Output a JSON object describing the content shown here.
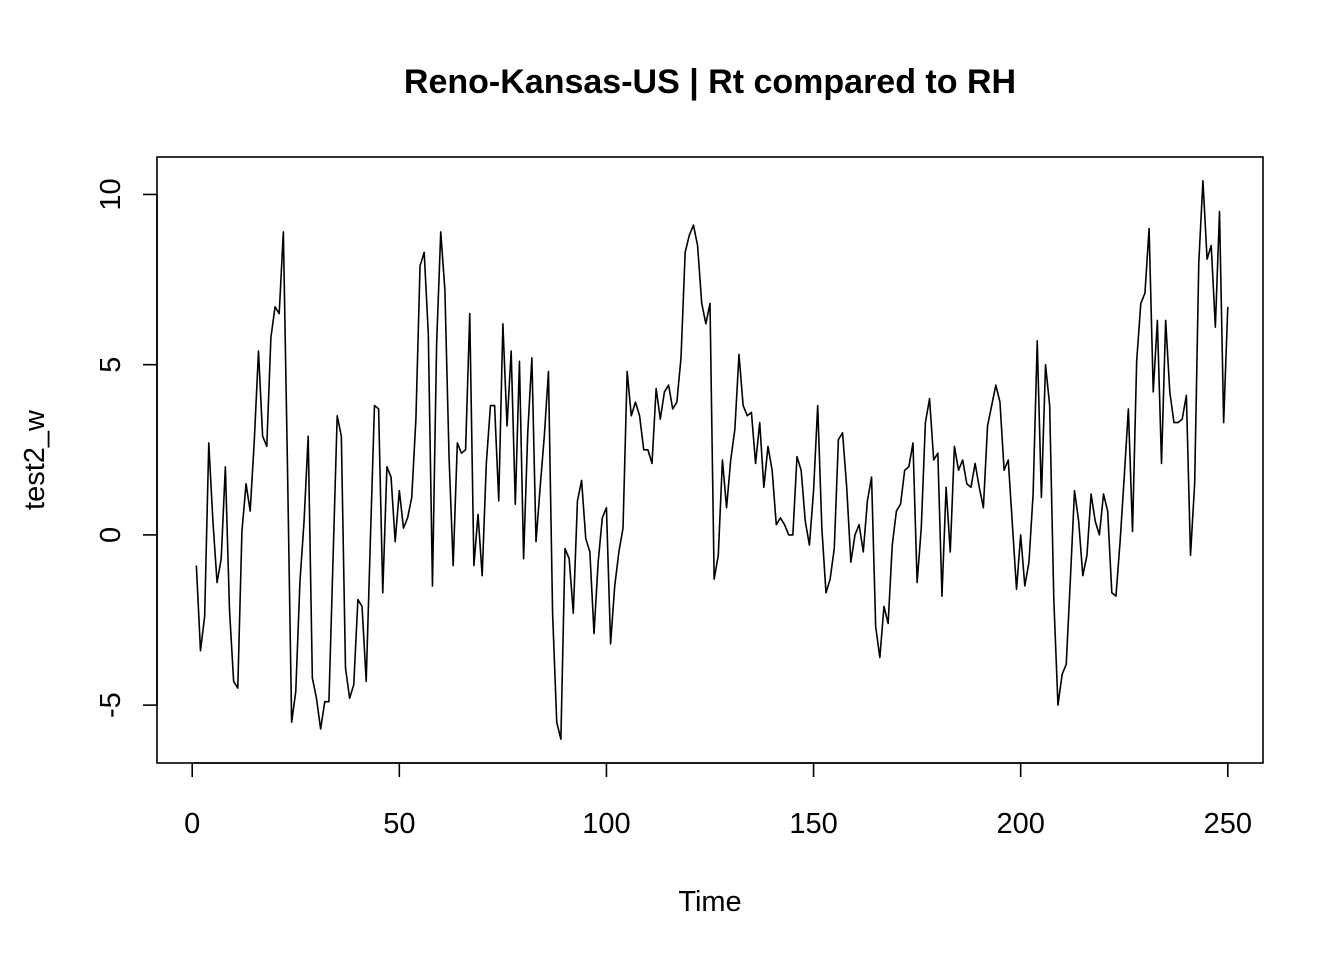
{
  "chart_data": {
    "type": "line",
    "title": "Reno-Kansas-US | Rt compared to RH",
    "xlabel": "Time",
    "ylabel": "test2_w",
    "xlim": [
      -8.5,
      258.5
    ],
    "ylim": [
      -6.7,
      11.1
    ],
    "xticks": [
      0,
      50,
      100,
      150,
      200,
      250
    ],
    "yticks": [
      -5,
      0,
      5,
      10
    ],
    "xtick_labels": [
      "0",
      "50",
      "100",
      "150",
      "200",
      "250"
    ],
    "ytick_labels": [
      "-5",
      "0",
      "5",
      "10"
    ],
    "grid": false,
    "legend": "none",
    "line_color": "#000000",
    "series": [
      {
        "x_start": 1,
        "values": [
          -0.9,
          -3.4,
          -2.4,
          2.7,
          0.4,
          -1.4,
          -0.7,
          2.0,
          -2.2,
          -4.3,
          -4.5,
          0.1,
          1.5,
          0.7,
          2.8,
          5.4,
          2.9,
          2.6,
          5.8,
          6.7,
          6.5,
          8.9,
          2.0,
          -5.5,
          -4.6,
          -1.4,
          0.4,
          2.9,
          -4.2,
          -4.8,
          -5.7,
          -4.9,
          -4.9,
          -0.7,
          3.5,
          2.9,
          -3.9,
          -4.8,
          -4.4,
          -1.9,
          -2.1,
          -4.3,
          -0.2,
          3.8,
          3.7,
          -1.7,
          2.0,
          1.7,
          -0.2,
          1.3,
          0.2,
          0.5,
          1.1,
          3.4,
          7.9,
          8.3,
          5.9,
          -1.5,
          5.6,
          8.9,
          7.2,
          2.3,
          -0.9,
          2.7,
          2.4,
          2.5,
          6.5,
          -0.9,
          0.6,
          -1.2,
          2.1,
          3.8,
          3.8,
          1.0,
          6.2,
          3.2,
          5.4,
          0.9,
          5.1,
          -0.7,
          3.0,
          5.2,
          -0.2,
          1.4,
          2.9,
          4.8,
          -2.3,
          -5.5,
          -6.0,
          -0.4,
          -0.7,
          -2.3,
          1.0,
          1.6,
          -0.1,
          -0.5,
          -2.9,
          -0.8,
          0.5,
          0.8,
          -3.2,
          -1.5,
          -0.5,
          0.2,
          4.8,
          3.5,
          3.9,
          3.5,
          2.5,
          2.5,
          2.1,
          4.3,
          3.4,
          4.2,
          4.4,
          3.7,
          3.9,
          5.2,
          8.3,
          8.8,
          9.1,
          8.5,
          6.8,
          6.2,
          6.8,
          -1.3,
          -0.6,
          2.2,
          0.8,
          2.2,
          3.1,
          5.3,
          3.8,
          3.5,
          3.6,
          2.1,
          3.3,
          1.4,
          2.6,
          1.9,
          0.3,
          0.5,
          0.3,
          0.0,
          0.0,
          2.3,
          1.9,
          0.4,
          -0.3,
          1.3,
          3.8,
          0.2,
          -1.7,
          -1.3,
          -0.4,
          2.8,
          3.0,
          1.4,
          -0.8,
          0.0,
          0.3,
          -0.5,
          1.0,
          1.7,
          -2.7,
          -3.6,
          -2.1,
          -2.6,
          -0.3,
          0.7,
          0.9,
          1.9,
          2.0,
          2.7,
          -1.4,
          0.2,
          3.3,
          4.0,
          2.2,
          2.4,
          -1.8,
          1.4,
          -0.5,
          2.6,
          1.9,
          2.2,
          1.5,
          1.4,
          2.1,
          1.4,
          0.8,
          3.2,
          3.8,
          4.4,
          3.9,
          1.9,
          2.2,
          0.3,
          -1.6,
          0.0,
          -1.5,
          -0.8,
          1.2,
          5.7,
          1.1,
          5.0,
          3.8,
          -1.9,
          -5.0,
          -4.1,
          -3.8,
          -1.3,
          1.3,
          0.4,
          -1.2,
          -0.6,
          1.2,
          0.4,
          0.0,
          1.2,
          0.7,
          -1.7,
          -1.8,
          -0.2,
          1.7,
          3.7,
          0.1,
          5.1,
          6.8,
          7.1,
          9.0,
          4.2,
          6.3,
          2.1,
          6.3,
          4.2,
          3.3,
          3.3,
          3.4,
          4.1,
          -0.6,
          1.5,
          8.0,
          10.4,
          8.1,
          8.5,
          6.1,
          9.5,
          3.3,
          6.7
        ]
      }
    ]
  }
}
